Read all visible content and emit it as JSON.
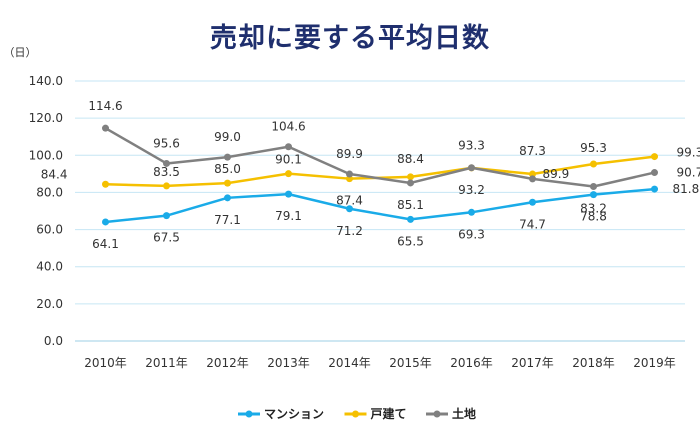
{
  "chart_data": {
    "type": "line",
    "title": "売却に要する平均日数",
    "ylabel": "（日）",
    "xlabel": "",
    "ylim": [
      0,
      140
    ],
    "yticks": [
      "0.0",
      "20.0",
      "40.0",
      "60.0",
      "80.0",
      "100.0",
      "120.0",
      "140.0"
    ],
    "categories": [
      "2010年",
      "2011年",
      "2012年",
      "2013年",
      "2014年",
      "2015年",
      "2016年",
      "2017年",
      "2018年",
      "2019年"
    ],
    "grid": true,
    "legend_position": "bottom",
    "series": [
      {
        "name": "マンション",
        "color": "#1aabe8",
        "values": [
          64.1,
          67.5,
          77.1,
          79.1,
          71.2,
          65.5,
          69.3,
          74.7,
          78.8,
          81.8
        ]
      },
      {
        "name": "戸建て",
        "color": "#f5c000",
        "values": [
          84.4,
          83.5,
          85.0,
          90.1,
          87.4,
          88.4,
          93.2,
          89.9,
          95.3,
          99.3
        ]
      },
      {
        "name": "土地",
        "color": "#808080",
        "values": [
          114.6,
          95.6,
          99.0,
          104.6,
          89.9,
          85.1,
          93.3,
          87.3,
          83.2,
          90.7
        ]
      }
    ]
  }
}
